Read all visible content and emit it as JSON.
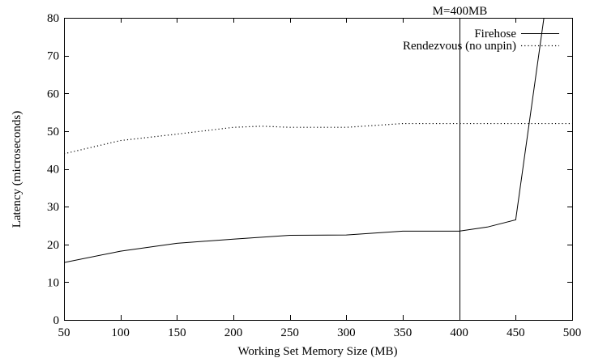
{
  "chart_data": {
    "type": "line",
    "title": "",
    "xlabel": "Working Set Memory Size (MB)",
    "ylabel": "Latency (microseconds)",
    "xlim": [
      50,
      500
    ],
    "ylim": [
      0,
      80
    ],
    "xticks": [
      "50",
      "100",
      "150",
      "200",
      "250",
      "300",
      "350",
      "400",
      "450",
      "500"
    ],
    "yticks": [
      "0",
      "10",
      "20",
      "30",
      "40",
      "50",
      "60",
      "70",
      "80"
    ],
    "grid": false,
    "legend_position": "top-right",
    "series": [
      {
        "name": "Firehose",
        "style": "solid",
        "color": "#000000",
        "x": [
          50,
          100,
          150,
          200,
          250,
          300,
          350,
          400,
          425,
          450,
          475
        ],
        "y": [
          15.2,
          18.2,
          20.3,
          21.4,
          22.4,
          22.5,
          23.5,
          23.5,
          24.6,
          26.5,
          80
        ]
      },
      {
        "name": "Rendezvous (no unpin)",
        "style": "dotted",
        "color": "#000000",
        "x": [
          50,
          100,
          150,
          200,
          225,
          250,
          300,
          350,
          400,
          450,
          500
        ],
        "y": [
          44,
          47.5,
          49.2,
          51,
          51.3,
          51,
          51,
          52,
          52,
          52,
          52
        ]
      }
    ],
    "annotations": [
      {
        "type": "vline",
        "x": 400,
        "label": "M=400MB"
      }
    ]
  }
}
